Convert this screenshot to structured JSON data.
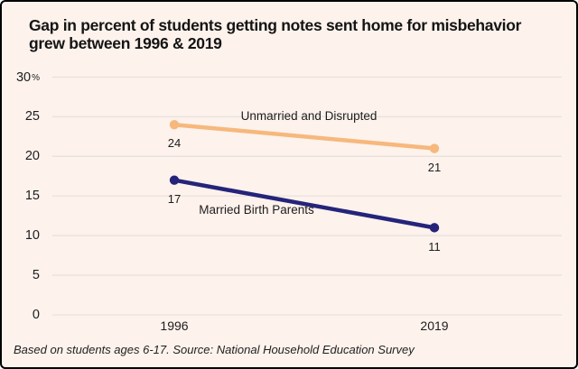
{
  "header": {
    "title": "Gap in percent of students getting notes sent home for misbehavior grew between 1996 & 2019"
  },
  "footer": {
    "note": "Based on students ages 6-17. Source: National Household Education Survey"
  },
  "colors": {
    "background": "#fdf2ec",
    "border": "#000000",
    "gridline": "#e8e2de",
    "text": "#1a1a1a",
    "series_unmarried": "#f6b87d",
    "series_married": "#25247a"
  },
  "chart_data": {
    "type": "line",
    "title": "Gap in percent of students getting notes sent home for misbehavior grew between 1996 & 2019",
    "x": [
      "1996",
      "2019"
    ],
    "series": [
      {
        "name": "Unmarried and Disrupted",
        "values": [
          24,
          21
        ],
        "color": "#f6b87d",
        "point_labels": [
          "24",
          "21"
        ]
      },
      {
        "name": "Married Birth Parents",
        "values": [
          17,
          11
        ],
        "color": "#25247a",
        "point_labels": [
          "17",
          "11"
        ]
      }
    ],
    "ylim": [
      0,
      30
    ],
    "yticks": [
      0,
      5,
      10,
      15,
      20,
      25,
      30
    ],
    "ytick_unit": "%",
    "grid": true,
    "legend_position": "inline-labels",
    "footer": "Based on students ages 6-17. Source: National Household Education Survey"
  }
}
